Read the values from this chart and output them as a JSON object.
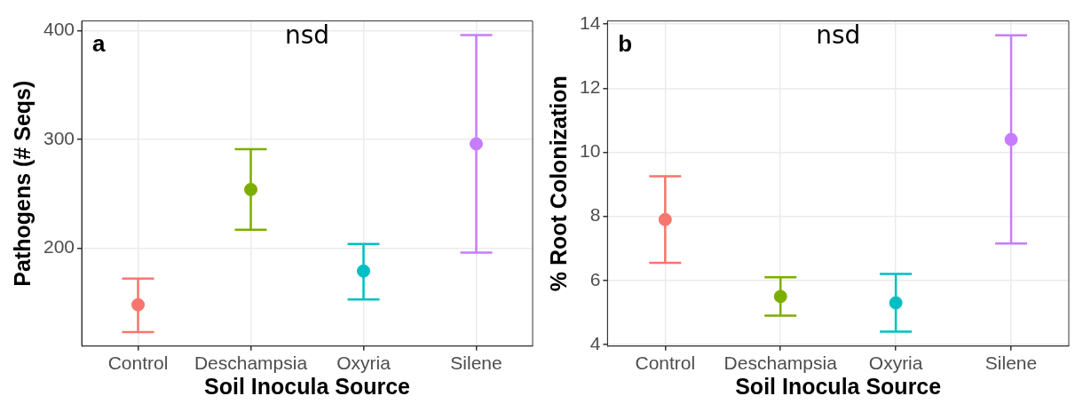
{
  "chart_data": [
    {
      "type": "scatter",
      "xlabel": "Soil Inocula Source",
      "ylabel": "Pathogens (# Seqs)",
      "annotations": [
        "a",
        "nsd"
      ],
      "categories": [
        "Control",
        "Deschampsia",
        "Oxyria",
        "Silene"
      ],
      "values": [
        148,
        254,
        179,
        296
      ],
      "colors": [
        "#f8766d",
        "#7cae00",
        "#00bfc4",
        "#c77cff"
      ],
      "errors": [
        [
          123,
          172
        ],
        [
          217,
          291
        ],
        [
          153,
          204
        ],
        [
          196,
          396
        ]
      ],
      "ylim": [
        110,
        409
      ],
      "yticks": [
        200,
        300,
        400
      ],
      "grid": true,
      "marker": "circle",
      "legend": false
    },
    {
      "type": "scatter",
      "xlabel": "Soil Inocula Source",
      "ylabel": "% Root Colonization",
      "annotations": [
        "b",
        "nsd"
      ],
      "categories": [
        "Control",
        "Deschampsia",
        "Oxyria",
        "Silene"
      ],
      "values": [
        7.9,
        5.5,
        5.3,
        10.4
      ],
      "colors": [
        "#f8766d",
        "#7cae00",
        "#00bfc4",
        "#c77cff"
      ],
      "errors": [
        [
          6.55,
          9.25
        ],
        [
          4.9,
          6.1
        ],
        [
          4.4,
          6.2
        ],
        [
          7.15,
          13.65
        ]
      ],
      "ylim": [
        3.95,
        14.1
      ],
      "yticks": [
        4,
        6,
        8,
        10,
        12,
        14
      ],
      "grid": true,
      "marker": "circle",
      "legend": false
    }
  ]
}
